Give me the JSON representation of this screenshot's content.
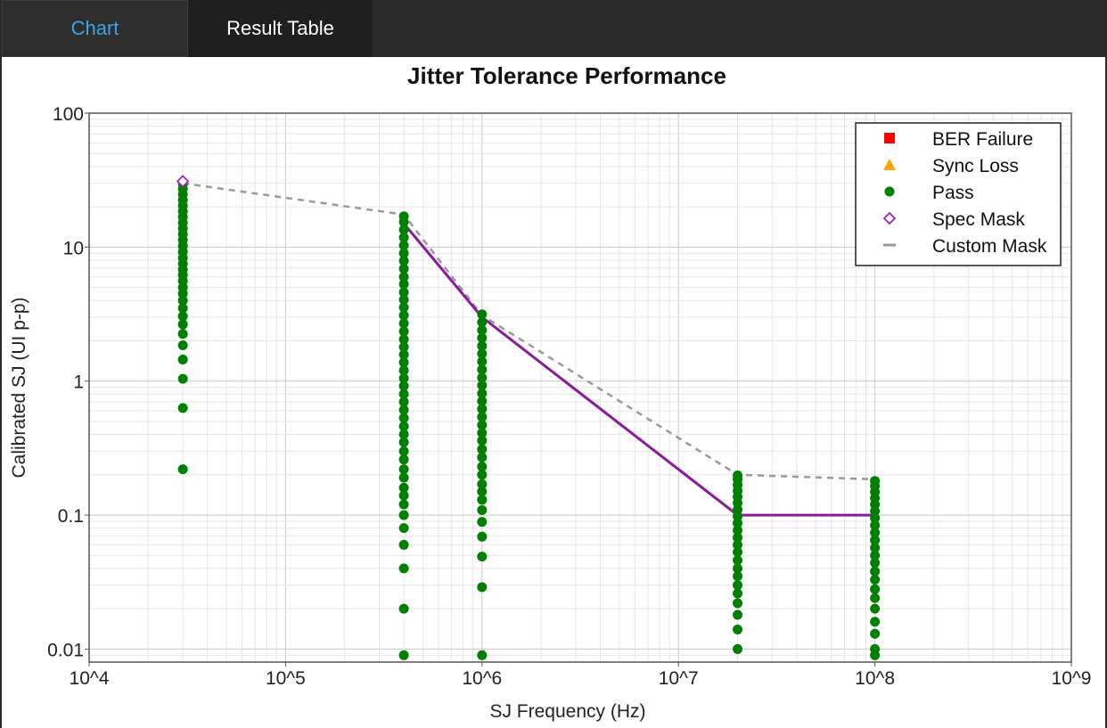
{
  "tabs": [
    {
      "label": "Chart",
      "active": true
    },
    {
      "label": "Result Table",
      "active": false
    }
  ],
  "chart_data": {
    "type": "scatter",
    "title": "Jitter Tolerance Performance",
    "xlabel": "SJ Frequency (Hz)",
    "ylabel": "Calibrated SJ (UI p-p)",
    "xscale": "log",
    "yscale": "log",
    "xlim": [
      10000,
      1000000000
    ],
    "ylim": [
      0.008,
      100
    ],
    "x_ticks": [
      {
        "value": 10000,
        "label": "10^4"
      },
      {
        "value": 100000,
        "label": "10^5"
      },
      {
        "value": 1000000,
        "label": "10^6"
      },
      {
        "value": 10000000,
        "label": "10^7"
      },
      {
        "value": 100000000,
        "label": "10^8"
      },
      {
        "value": 1000000000,
        "label": "10^9"
      }
    ],
    "y_ticks": [
      {
        "value": 0.01,
        "label": "0.01"
      },
      {
        "value": 0.1,
        "label": "0.1"
      },
      {
        "value": 1,
        "label": "1"
      },
      {
        "value": 10,
        "label": "10"
      },
      {
        "value": 100,
        "label": "100"
      }
    ],
    "grid": true,
    "legend_position": "top-right",
    "series": [
      {
        "name": "BER Failure",
        "marker": "square",
        "color": "#ff0000",
        "points": []
      },
      {
        "name": "Sync Loss",
        "marker": "triangle",
        "color": "#ffa500",
        "points": []
      },
      {
        "name": "Pass",
        "marker": "circle",
        "color": "#008000",
        "columns": [
          {
            "x": 30000,
            "y": [
              0.22,
              0.63,
              1.04,
              1.45,
              1.85,
              2.25,
              2.65,
              3.05,
              3.5,
              4,
              4.5,
              5,
              5.6,
              6.2,
              6.8,
              7.5,
              8.3,
              9.2,
              10.2,
              11.3,
              12.5,
              13.8,
              15.2,
              16.8,
              18.5,
              20.4,
              22.5,
              24.8,
              27.2,
              29.5
            ]
          },
          {
            "x": 400000,
            "y": [
              0.009,
              0.02,
              0.04,
              0.06,
              0.08,
              0.1,
              0.12,
              0.14,
              0.16,
              0.19,
              0.22,
              0.26,
              0.3,
              0.35,
              0.4,
              0.46,
              0.53,
              0.61,
              0.7,
              0.8,
              0.92,
              1.05,
              1.2,
              1.38,
              1.58,
              1.8,
              2.05,
              2.35,
              2.7,
              3.1,
              3.55,
              4.05,
              4.6,
              5.3,
              6,
              6.9,
              7.9,
              9,
              10.3,
              11.8,
              13.5,
              15.4,
              17
            ]
          },
          {
            "x": 1000000,
            "y": [
              0.009,
              0.029,
              0.049,
              0.069,
              0.089,
              0.109,
              0.13,
              0.15,
              0.17,
              0.2,
              0.23,
              0.27,
              0.31,
              0.36,
              0.41,
              0.47,
              0.54,
              0.62,
              0.71,
              0.81,
              0.93,
              1.06,
              1.22,
              1.4,
              1.6,
              1.83,
              2.1,
              2.4,
              2.75,
              3.15
            ]
          },
          {
            "x": 20000000,
            "y": [
              0.01,
              0.014,
              0.018,
              0.022,
              0.026,
              0.03,
              0.035,
              0.04,
              0.046,
              0.053,
              0.06,
              0.068,
              0.077,
              0.087,
              0.098,
              0.11,
              0.123,
              0.137,
              0.152,
              0.168,
              0.185,
              0.198
            ]
          },
          {
            "x": 100000000,
            "y": [
              0.009,
              0.01,
              0.013,
              0.016,
              0.02,
              0.024,
              0.028,
              0.033,
              0.038,
              0.044,
              0.05,
              0.057,
              0.065,
              0.074,
              0.084,
              0.095,
              0.107,
              0.12,
              0.134,
              0.149,
              0.165,
              0.18
            ]
          }
        ]
      },
      {
        "name": "Spec Mask",
        "marker": "diamond",
        "color": "#a020c0",
        "points": [
          {
            "x": 30000,
            "y": 31
          }
        ]
      },
      {
        "name": "Custom Mask",
        "marker": "dash",
        "color": "#999999",
        "line": "dashed",
        "points": [
          {
            "x": 30000,
            "y": 30
          },
          {
            "x": 400000,
            "y": 17.5
          },
          {
            "x": 1000000,
            "y": 3.1
          },
          {
            "x": 20000000,
            "y": 0.2
          },
          {
            "x": 100000000,
            "y": 0.185
          }
        ]
      }
    ],
    "spec_line": {
      "color": "#8b1a9b",
      "points": [
        {
          "x": 400000,
          "y": 15
        },
        {
          "x": 1000000,
          "y": 3
        },
        {
          "x": 20000000,
          "y": 0.1
        },
        {
          "x": 100000000,
          "y": 0.1
        }
      ]
    }
  }
}
